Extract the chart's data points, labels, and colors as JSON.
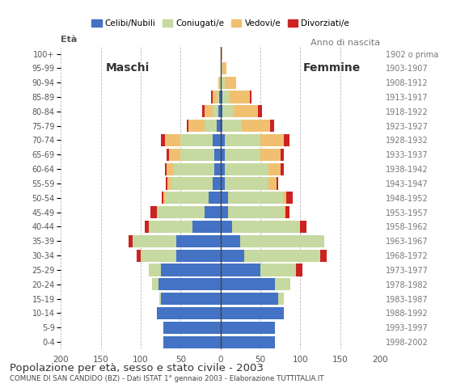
{
  "title": "Popolazione per età, sesso e stato civile - 2003",
  "subtitle": "COMUNE DI SAN CANDIDO (BZ) - Dati ISTAT 1° gennaio 2003 - Elaborazione TUTTITALIA.IT",
  "ylabel_left": "Età",
  "ylabel_right": "Anno di nascita",
  "xlim": 200,
  "age_groups": [
    "0-4",
    "5-9",
    "10-14",
    "15-19",
    "20-24",
    "25-29",
    "30-34",
    "35-39",
    "40-44",
    "45-49",
    "50-54",
    "55-59",
    "60-64",
    "65-69",
    "70-74",
    "75-79",
    "80-84",
    "85-89",
    "90-94",
    "95-99",
    "100+"
  ],
  "birth_years": [
    "1998-2002",
    "1993-1997",
    "1988-1992",
    "1983-1987",
    "1978-1982",
    "1973-1977",
    "1968-1972",
    "1963-1967",
    "1958-1962",
    "1953-1957",
    "1948-1952",
    "1943-1947",
    "1938-1942",
    "1933-1937",
    "1928-1932",
    "1923-1927",
    "1918-1922",
    "1913-1917",
    "1908-1912",
    "1903-1907",
    "1902 o prima"
  ],
  "colors": {
    "celibe": "#4472c4",
    "coniugato": "#c6d9a0",
    "vedovo": "#f0c070",
    "divorziato": "#cc2222"
  },
  "legend_labels": [
    "Celibi/Nubili",
    "Coniugati/e",
    "Vedovi/e",
    "Divorziati/e"
  ],
  "maschi": {
    "celibe": [
      72,
      72,
      80,
      75,
      78,
      75,
      55,
      55,
      35,
      20,
      15,
      10,
      8,
      8,
      10,
      5,
      3,
      2,
      0,
      0,
      0
    ],
    "coniugato": [
      0,
      0,
      0,
      2,
      8,
      15,
      45,
      55,
      55,
      60,
      55,
      52,
      50,
      42,
      40,
      15,
      7,
      3,
      1,
      0,
      0
    ],
    "vedovo": [
      0,
      0,
      0,
      0,
      0,
      0,
      0,
      0,
      0,
      0,
      2,
      5,
      10,
      15,
      20,
      20,
      10,
      5,
      2,
      0,
      0
    ],
    "divorziato": [
      0,
      0,
      0,
      0,
      0,
      0,
      5,
      5,
      5,
      8,
      2,
      2,
      2,
      3,
      5,
      2,
      3,
      2,
      0,
      0,
      0
    ]
  },
  "femmine": {
    "celibe": [
      68,
      68,
      80,
      72,
      68,
      50,
      30,
      25,
      15,
      10,
      10,
      5,
      5,
      5,
      5,
      2,
      2,
      2,
      0,
      0,
      0
    ],
    "coniugato": [
      0,
      0,
      0,
      8,
      20,
      45,
      95,
      105,
      85,
      70,
      68,
      55,
      55,
      45,
      45,
      25,
      15,
      10,
      5,
      2,
      0
    ],
    "vedovo": [
      0,
      0,
      0,
      0,
      0,
      0,
      0,
      0,
      0,
      2,
      5,
      10,
      15,
      25,
      30,
      35,
      30,
      25,
      15,
      5,
      2
    ],
    "divorziato": [
      0,
      0,
      0,
      0,
      0,
      8,
      8,
      0,
      8,
      5,
      8,
      2,
      5,
      5,
      7,
      5,
      5,
      2,
      0,
      0,
      0
    ]
  },
  "background_color": "#ffffff",
  "grid_color": "#bbbbbb",
  "bar_height": 0.85
}
